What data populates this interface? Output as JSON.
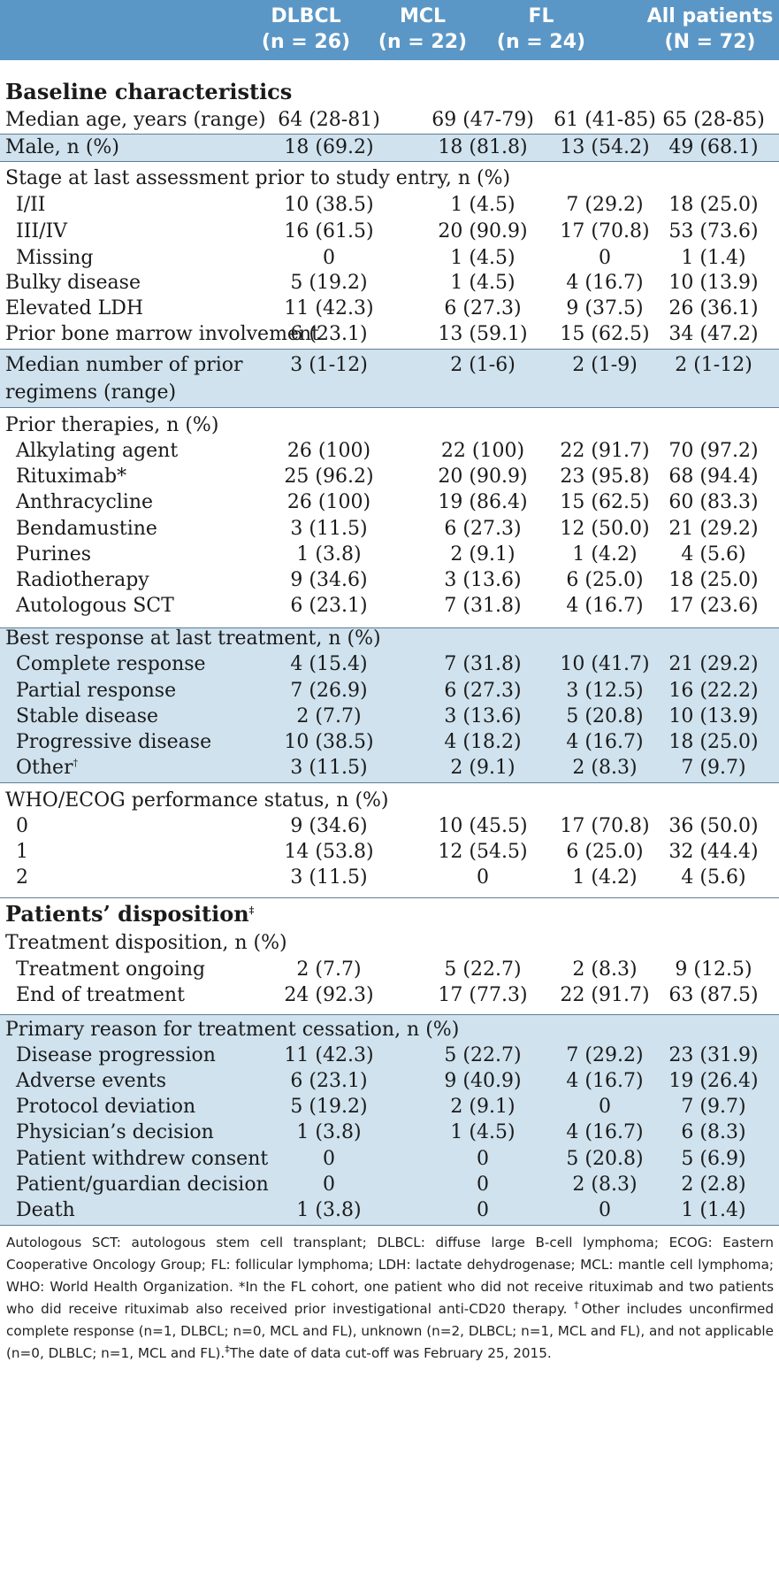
{
  "header": {
    "columns": [
      {
        "name": "DLBCL",
        "n": "(n = 26)"
      },
      {
        "name": "MCL",
        "n": "(n = 22)"
      },
      {
        "name": "FL",
        "n": "(n = 24)"
      },
      {
        "name": "All patients",
        "n": "(N = 72)"
      }
    ]
  },
  "sections": {
    "baseline": "Baseline characteristics",
    "disposition": "Patients’ disposition",
    "disposition_mark": "‡"
  },
  "rows": {
    "median_age": {
      "label": "Median age, years (range)",
      "v": [
        "64 (28-81)",
        "69 (47-79)",
        "61 (41-85)",
        "65 (28-85)"
      ]
    },
    "male": {
      "label": "Male, n (%)",
      "v": [
        "18 (69.2)",
        "18 (81.8)",
        "13 (54.2)",
        "49 (68.1)"
      ]
    },
    "stage_heading": {
      "label": "Stage at last assessment prior to study entry, n (%)"
    },
    "stage_1_2": {
      "label": "I/II",
      "v": [
        "10 (38.5)",
        "1 (4.5)",
        "7 (29.2)",
        "18 (25.0)"
      ]
    },
    "stage_3_4": {
      "label": "III/IV",
      "v": [
        "16 (61.5)",
        "20 (90.9)",
        "17 (70.8)",
        "53 (73.6)"
      ]
    },
    "stage_missing": {
      "label": "Missing",
      "v": [
        "0",
        "1 (4.5)",
        "0",
        "1 (1.4)"
      ]
    },
    "bulky": {
      "label": "Bulky disease",
      "v": [
        "5 (19.2)",
        "1 (4.5)",
        "4 (16.7)",
        "10 (13.9)"
      ]
    },
    "ldh": {
      "label": "Elevated LDH",
      "v": [
        "11 (42.3)",
        "6 (27.3)",
        "9 (37.5)",
        "26 (36.1)"
      ]
    },
    "marrow": {
      "label": "Prior bone marrow involvement",
      "v": [
        "6 (23.1)",
        "13 (59.1)",
        "15 (62.5)",
        "34 (47.2)"
      ]
    },
    "regimens": {
      "label": "Median number of prior regimens (range)",
      "v": [
        "3 (1-12)",
        "2 (1-6)",
        "2 (1-9)",
        "2 (1-12)"
      ]
    },
    "therapies_heading": {
      "label": "Prior therapies, n (%)"
    },
    "alkylating": {
      "label": "Alkylating agent",
      "v": [
        "26 (100)",
        "22 (100)",
        "22 (91.7)",
        "70 (97.2)"
      ]
    },
    "rituximab": {
      "label": "Rituximab*",
      "v": [
        "25 (96.2)",
        "20 (90.9)",
        "23 (95.8)",
        "68 (94.4)"
      ]
    },
    "anthracycline": {
      "label": "Anthracycline",
      "v": [
        "26 (100)",
        "19 (86.4)",
        "15 (62.5)",
        "60 (83.3)"
      ]
    },
    "bendamustine": {
      "label": "Bendamustine",
      "v": [
        "3 (11.5)",
        "6 (27.3)",
        "12 (50.0)",
        "21 (29.2)"
      ]
    },
    "purines": {
      "label": "Purines",
      "v": [
        "1 (3.8)",
        "2 (9.1)",
        "1 (4.2)",
        "4 (5.6)"
      ]
    },
    "radiotherapy": {
      "label": "Radiotherapy",
      "v": [
        "9 (34.6)",
        "3 (13.6)",
        "6 (25.0)",
        "18 (25.0)"
      ]
    },
    "auto_sct": {
      "label": "Autologous SCT",
      "v": [
        "6 (23.1)",
        "7 (31.8)",
        "4 (16.7)",
        "17 (23.6)"
      ]
    },
    "response_heading": {
      "label": "Best response at last treatment, n (%)"
    },
    "complete": {
      "label": "Complete response",
      "v": [
        "4 (15.4)",
        "7 (31.8)",
        "10 (41.7)",
        "21 (29.2)"
      ]
    },
    "partial": {
      "label": "Partial response",
      "v": [
        "7 (26.9)",
        "6 (27.3)",
        "3 (12.5)",
        "16 (22.2)"
      ]
    },
    "stable": {
      "label": "Stable disease",
      "v": [
        "2 (7.7)",
        "3 (13.6)",
        "5 (20.8)",
        "10 (13.9)"
      ]
    },
    "progressive": {
      "label": "Progressive disease",
      "v": [
        "10 (38.5)",
        "4 (18.2)",
        "4 (16.7)",
        "18 (25.0)"
      ]
    },
    "other": {
      "label": "Other",
      "mark": "†",
      "v": [
        "3 (11.5)",
        "2 (9.1)",
        "2 (8.3)",
        "7 (9.7)"
      ]
    },
    "ecog_heading": {
      "label": "WHO/ECOG performance status, n (%)"
    },
    "ecog_0": {
      "label": "0",
      "v": [
        "9 (34.6)",
        "10 (45.5)",
        "17 (70.8)",
        "36 (50.0)"
      ]
    },
    "ecog_1": {
      "label": "1",
      "v": [
        "14 (53.8)",
        "12 (54.5)",
        "6 (25.0)",
        "32 (44.4)"
      ]
    },
    "ecog_2": {
      "label": "2",
      "v": [
        "3 (11.5)",
        "0",
        "1 (4.2)",
        "4 (5.6)"
      ]
    },
    "treatment_heading": {
      "label": "Treatment disposition, n (%)"
    },
    "ongoing": {
      "label": "Treatment ongoing",
      "v": [
        "2 (7.7)",
        "5 (22.7)",
        "2 (8.3)",
        "9 (12.5)"
      ]
    },
    "end": {
      "label": "End of treatment",
      "v": [
        "24 (92.3)",
        "17 (77.3)",
        "22 (91.7)",
        "63 (87.5)"
      ]
    },
    "reason_heading": {
      "label": "Primary reason for treatment cessation, n (%)"
    },
    "progression": {
      "label": "Disease progression",
      "v": [
        "11 (42.3)",
        "5 (22.7)",
        "7 (29.2)",
        "23 (31.9)"
      ]
    },
    "adverse": {
      "label": "Adverse events",
      "v": [
        "6 (23.1)",
        "9 (40.9)",
        "4 (16.7)",
        "19 (26.4)"
      ]
    },
    "protocol": {
      "label": "Protocol deviation",
      "v": [
        "5 (19.2)",
        "2 (9.1)",
        "0",
        "7 (9.7)"
      ]
    },
    "physician": {
      "label": "Physician’s decision",
      "v": [
        "1 (3.8)",
        "1 (4.5)",
        "4 (16.7)",
        "6 (8.3)"
      ]
    },
    "withdrew": {
      "label": "Patient withdrew consent",
      "v": [
        "0",
        "0",
        "5 (20.8)",
        "5 (6.9)"
      ]
    },
    "guardian": {
      "label": "Patient/guardian decision",
      "v": [
        "0",
        "0",
        "2 (8.3)",
        "2 (2.8)"
      ]
    },
    "death": {
      "label": "Death",
      "v": [
        "1 (3.8)",
        "0",
        "0",
        "1 (1.4)"
      ]
    }
  },
  "footnote": {
    "abbrev": "Autologous SCT: autologous stem cell transplant; DLBCL: diffuse large B-cell lymphoma; ECOG: Eastern Cooperative Oncology Group; FL: follicular lymphoma; LDH: lactate dehydrogenase; MCL: mantle cell lymphoma; WHO: World Health Organization. *In the FL cohort, one patient who did not receive rituximab and two patients who did receive rituximab also received prior investigational anti-CD20 therapy. ",
    "dagger_mark": "†",
    "dagger": "Other includes unconfirmed complete response (n=1, DLBCL; n=0, MCL and FL), unknown (n=2, DLBCL; n=1, MCL and FL), and not applicable (n=0, DLBLC; n=1, MCL and FL).",
    "ddagger_mark": "‡",
    "ddagger": "The date of data cut-off was February 25, 2015."
  },
  "colors": {
    "header": "#5b97c6",
    "band": "#cfe2ee",
    "rule": "#5f7f96"
  }
}
